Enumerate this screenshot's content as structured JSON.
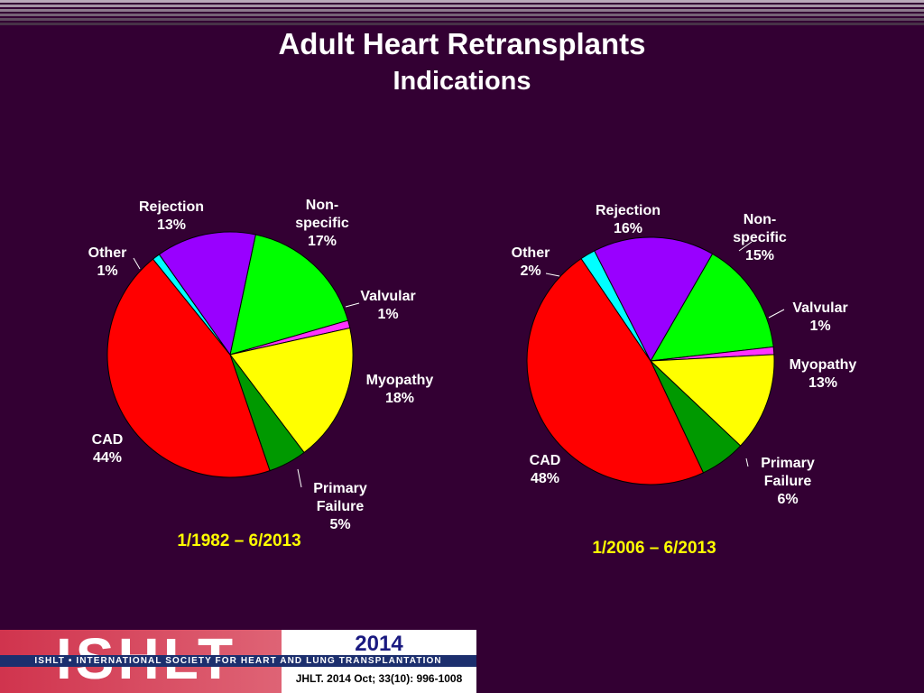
{
  "header": {
    "title": "Adult Heart Retransplants",
    "subtitle": "Indications"
  },
  "colors": {
    "background": "#330033",
    "label_text": "#ffffff",
    "period_label": "#ffff00",
    "slice_outline": "#000000"
  },
  "chart_data": [
    {
      "type": "pie",
      "period": "1/1982 – 6/2013",
      "start_angle_deg": -78,
      "slices": [
        {
          "name": "Non-specific",
          "value": 17,
          "label_lines": [
            "Non-",
            "specific",
            "17%"
          ],
          "color": "#00ff00"
        },
        {
          "name": "Valvular",
          "value": 1,
          "label_lines": [
            "Valvular",
            "1%"
          ],
          "color": "#ff33ff"
        },
        {
          "name": "Myopathy",
          "value": 18,
          "label_lines": [
            "Myopathy",
            "18%"
          ],
          "color": "#ffff00"
        },
        {
          "name": "Primary Failure",
          "value": 5,
          "label_lines": [
            "Primary",
            "Failure",
            "5%"
          ],
          "color": "#009900"
        },
        {
          "name": "CAD",
          "value": 44,
          "label_lines": [
            "CAD",
            "44%"
          ],
          "color": "#ff0000"
        },
        {
          "name": "Other",
          "value": 1,
          "label_lines": [
            "Other",
            "1%"
          ],
          "color": "#00ffff"
        },
        {
          "name": "Rejection",
          "value": 13,
          "label_lines": [
            "Rejection",
            "13%"
          ],
          "color": "#9900ff"
        }
      ]
    },
    {
      "type": "pie",
      "period": "1/2006 – 6/2013",
      "start_angle_deg": -60,
      "slices": [
        {
          "name": "Non-specific",
          "value": 15,
          "label_lines": [
            "Non-",
            "specific",
            "15%"
          ],
          "color": "#00ff00"
        },
        {
          "name": "Valvular",
          "value": 1,
          "label_lines": [
            "Valvular",
            "1%"
          ],
          "color": "#ff33ff"
        },
        {
          "name": "Myopathy",
          "value": 13,
          "label_lines": [
            "Myopathy",
            "13%"
          ],
          "color": "#ffff00"
        },
        {
          "name": "Primary Failure",
          "value": 6,
          "label_lines": [
            "Primary",
            "Failure",
            "6%"
          ],
          "color": "#009900"
        },
        {
          "name": "CAD",
          "value": 48,
          "label_lines": [
            "CAD",
            "48%"
          ],
          "color": "#ff0000"
        },
        {
          "name": "Other",
          "value": 2,
          "label_lines": [
            "Other",
            "2%"
          ],
          "color": "#00ffff"
        },
        {
          "name": "Rejection",
          "value": 16,
          "label_lines": [
            "Rejection",
            "16%"
          ],
          "color": "#9900ff"
        }
      ]
    }
  ],
  "footer": {
    "logo_text": "ISHLT",
    "year": "2014",
    "society": "ISHLT • INTERNATIONAL SOCIETY FOR HEART AND LUNG TRANSPLANTATION",
    "citation": "JHLT. 2014 Oct; 33(10): 996-1008"
  }
}
